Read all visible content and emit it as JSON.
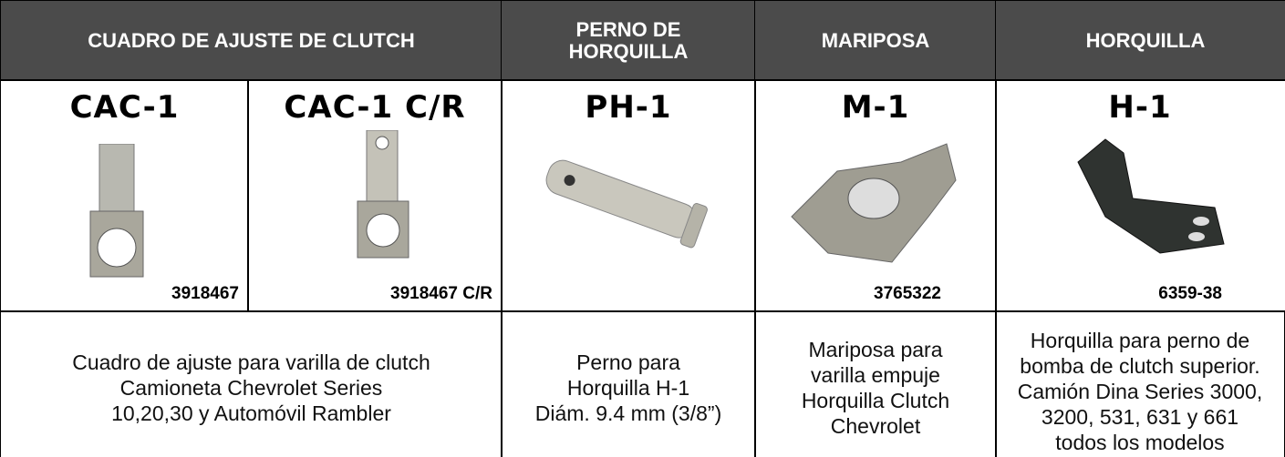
{
  "header": {
    "cells": [
      {
        "lines": [
          "CUADRO DE AJUSTE DE CLUTCH"
        ]
      },
      {
        "lines": [
          "PERNO DE",
          "HORQUILLA"
        ]
      },
      {
        "lines": [
          "MARIPOSA"
        ]
      },
      {
        "lines": [
          "HORQUILLA"
        ]
      }
    ]
  },
  "products": [
    {
      "code": "CAC-1",
      "part": "3918467"
    },
    {
      "code": "CAC-1 C/R",
      "part": "3918467 C/R"
    },
    {
      "code": "PH-1"
    },
    {
      "code": "M-1",
      "part": "3765322"
    },
    {
      "code": "H-1",
      "part": "6359-38"
    }
  ],
  "descriptions": [
    {
      "lines": [
        "Cuadro de ajuste para varilla de clutch",
        "Camioneta Chevrolet Series",
        "10,20,30 y Automóvil Rambler"
      ]
    },
    {
      "lines": [
        "Perno para",
        "Horquilla H-1",
        "Diám. 9.4 mm (3/8”)"
      ]
    },
    {
      "lines": [
        "Mariposa para",
        "varilla empuje",
        "Horquilla Clutch",
        "Chevrolet"
      ]
    },
    {
      "lines": [
        "Horquilla para perno de",
        "bomba de clutch superior.",
        "Camión Dina Series 3000,",
        "3200, 531, 631 y 661",
        "todos los modelos"
      ]
    }
  ]
}
